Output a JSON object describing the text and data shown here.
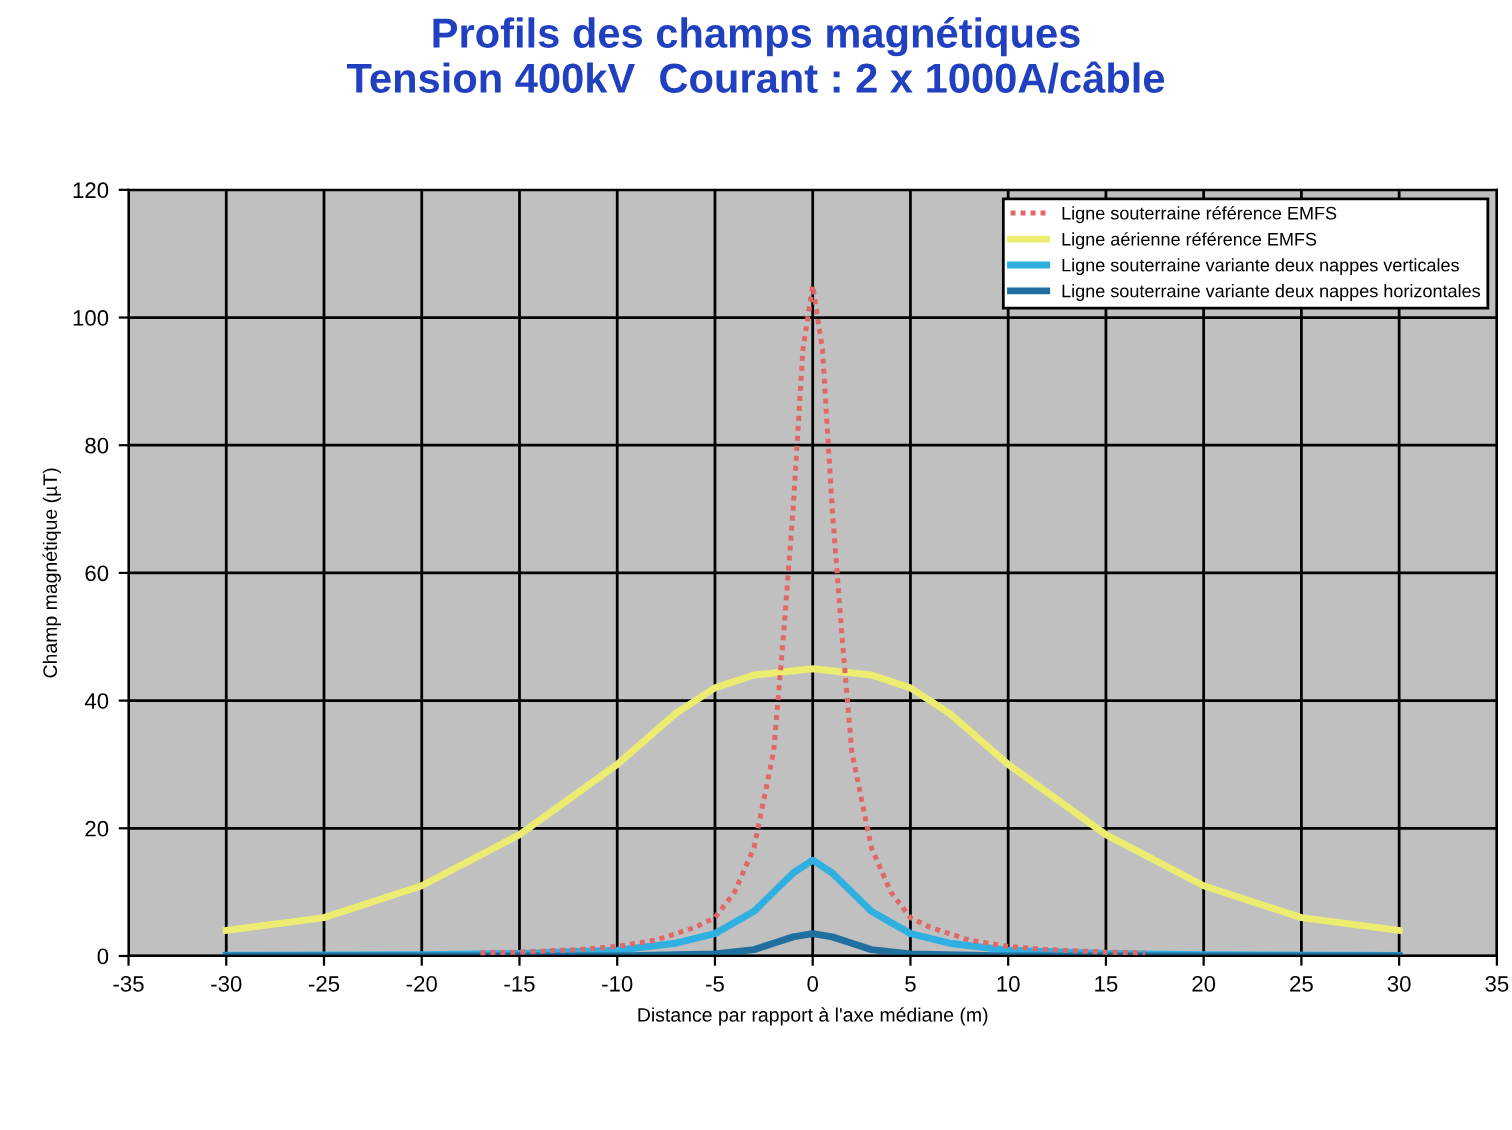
{
  "chart_data": {
    "type": "line",
    "title": "Profils des champs magnétiques\nTension 400kV  Courant : 2 x 1000A/câble",
    "xlabel": "Distance par rapport à l'axe médiane (m)",
    "ylabel": "Champ magnétique (µT)",
    "xlim": [
      -35,
      35
    ],
    "xticks": [
      -35,
      -30,
      -25,
      -20,
      -15,
      -10,
      -5,
      0,
      5,
      10,
      15,
      20,
      25,
      30,
      35
    ],
    "ylim": [
      0,
      120
    ],
    "yticks": [
      0,
      20,
      40,
      60,
      80,
      100,
      120
    ],
    "grid": true,
    "legend": "top right",
    "marker": "none",
    "series": [
      {
        "name": "Ligne souterraine référence EMFS",
        "color": "#e06868",
        "line_style": "dotted",
        "x": [
          -17,
          -15,
          -12,
          -10,
          -8,
          -6,
          -5,
          -4,
          -3,
          -2,
          -1.5,
          -1,
          -0.5,
          0,
          0.5,
          1,
          1.5,
          2,
          3,
          4,
          5,
          6,
          8,
          10,
          12,
          15,
          17
        ],
        "values": [
          0.5,
          0.6,
          1,
          1.5,
          2.5,
          4.5,
          6,
          10,
          17,
          32,
          50,
          70,
          95,
          105,
          95,
          70,
          50,
          32,
          17,
          10,
          6,
          4.5,
          2.5,
          1.5,
          1,
          0.6,
          0.5
        ]
      },
      {
        "name": "Ligne aérienne référence EMFS",
        "color": "#ecec70",
        "line_style": "solid",
        "x": [
          -30,
          -25,
          -20,
          -15,
          -10,
          -7,
          -5,
          -3,
          0,
          3,
          5,
          7,
          10,
          15,
          20,
          25,
          30
        ],
        "values": [
          4,
          6,
          11,
          19,
          30,
          38,
          42,
          44,
          45,
          44,
          42,
          38,
          30,
          19,
          11,
          6,
          4
        ]
      },
      {
        "name": "Ligne souterraine variante deux nappes verticales",
        "color": "#30b0e0",
        "line_style": "solid",
        "x": [
          -30,
          -20,
          -15,
          -10,
          -7,
          -5,
          -3,
          -2,
          -1,
          0,
          1,
          2,
          3,
          5,
          7,
          10,
          15,
          20,
          30
        ],
        "values": [
          0.1,
          0.2,
          0.4,
          0.9,
          2,
          3.5,
          7,
          10,
          13,
          15,
          13,
          10,
          7,
          3.5,
          2,
          0.9,
          0.4,
          0.2,
          0.1
        ]
      },
      {
        "name": "Ligne souterraine variante deux nappes horizontales",
        "color": "#1f6f9f",
        "line_style": "solid",
        "x": [
          -30,
          -10,
          -5,
          -3,
          -2,
          -1,
          0,
          1,
          2,
          3,
          5,
          10,
          30
        ],
        "values": [
          0,
          0,
          0.3,
          1,
          2,
          3,
          3.5,
          3,
          2,
          1,
          0.3,
          0,
          0
        ]
      }
    ]
  }
}
